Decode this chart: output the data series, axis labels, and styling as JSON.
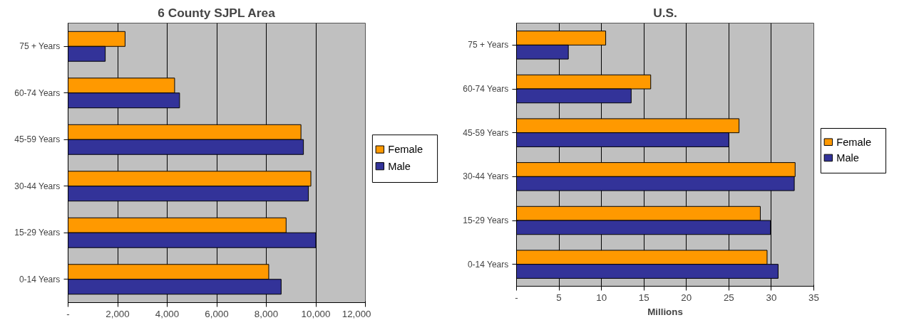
{
  "chart_data": [
    {
      "type": "bar",
      "orientation": "horizontal",
      "title": "6 County SJPL Area",
      "categories": [
        "75 + Years",
        "60-74 Years",
        "45-59 Years",
        "30-44 Years",
        "15-29 Years",
        "0-14 Years"
      ],
      "series": [
        {
          "name": "Female",
          "color": "#ff9900",
          "values": [
            2300,
            4300,
            9400,
            9800,
            8800,
            8100
          ]
        },
        {
          "name": "Male",
          "color": "#333399",
          "values": [
            1500,
            4500,
            9500,
            9700,
            10000,
            8600
          ]
        }
      ],
      "xlim": [
        0,
        12000
      ],
      "xticks": [
        {
          "value": 0,
          "label": "-"
        },
        {
          "value": 2000,
          "label": "2,000"
        },
        {
          "value": 4000,
          "label": "4,000"
        },
        {
          "value": 6000,
          "label": "6,000"
        },
        {
          "value": 8000,
          "label": "8,000"
        },
        {
          "value": 10000,
          "label": "10,000"
        },
        {
          "value": 12000,
          "label": "12,000"
        }
      ],
      "grid": "x",
      "legend": "right"
    },
    {
      "type": "bar",
      "orientation": "horizontal",
      "title": "U.S.",
      "xlabel": "Millions",
      "categories": [
        "75 + Years",
        "60-74 Years",
        "45-59 Years",
        "30-44 Years",
        "15-29 Years",
        "0-14 Years"
      ],
      "series": [
        {
          "name": "Female",
          "color": "#ff9900",
          "values": [
            10.5,
            15.8,
            26.2,
            32.8,
            28.7,
            29.5
          ]
        },
        {
          "name": "Male",
          "color": "#333399",
          "values": [
            6.1,
            13.5,
            25.0,
            32.7,
            29.9,
            30.8
          ]
        }
      ],
      "xlim": [
        0,
        35
      ],
      "xticks": [
        {
          "value": 0,
          "label": "-"
        },
        5,
        10,
        15,
        20,
        25,
        30,
        35
      ],
      "grid": "x",
      "legend": "right"
    }
  ]
}
